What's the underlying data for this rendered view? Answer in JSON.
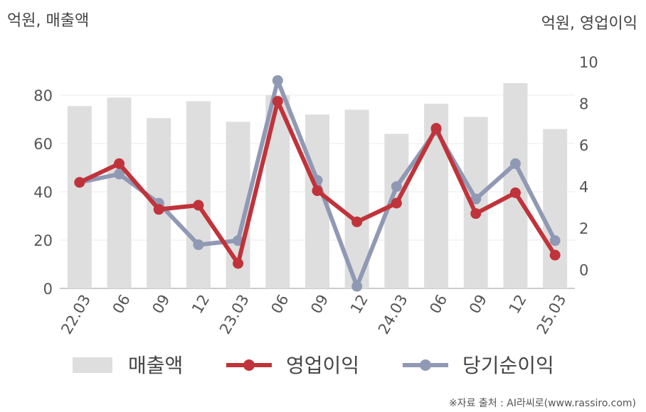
{
  "chart_data": {
    "type": "bar+line",
    "categories": [
      "22.03",
      "06",
      "09",
      "12",
      "23.03",
      "06",
      "09",
      "12",
      "24.03",
      "06",
      "09",
      "12",
      "25.03"
    ],
    "series": [
      {
        "name": "매출액",
        "type": "bar",
        "axis": "left",
        "color": "#dedede",
        "values": [
          75.5,
          79.0,
          70.5,
          77.5,
          69.0,
          80.0,
          72.0,
          74.0,
          64.0,
          76.5,
          71.0,
          85.0,
          66.0
        ]
      },
      {
        "name": "영업이익",
        "type": "line",
        "axis": "right",
        "color": "#c0333a",
        "values": [
          4.2,
          5.1,
          2.9,
          3.1,
          0.3,
          8.1,
          3.8,
          2.3,
          3.2,
          6.8,
          2.7,
          3.7,
          0.7
        ]
      },
      {
        "name": "당기순이익",
        "type": "line",
        "axis": "right",
        "color": "#9099b4",
        "values": [
          4.2,
          4.6,
          3.2,
          1.2,
          1.4,
          9.1,
          4.3,
          -0.8,
          4.0,
          6.7,
          3.4,
          5.1,
          1.4
        ]
      }
    ],
    "left_axis": {
      "unit_label": "억원, 매출액",
      "range": [
        0,
        90
      ],
      "ticks": [
        0,
        20,
        40,
        60,
        80
      ]
    },
    "right_axis": {
      "unit_label": "억원, 영업이익",
      "range": [
        -0.9,
        10
      ],
      "ticks": [
        0,
        2,
        4,
        6,
        8,
        10
      ]
    },
    "grid": true,
    "legend_position": "bottom"
  },
  "source": "※자료 출처 : AI라씨로(www.rassiro.com)"
}
